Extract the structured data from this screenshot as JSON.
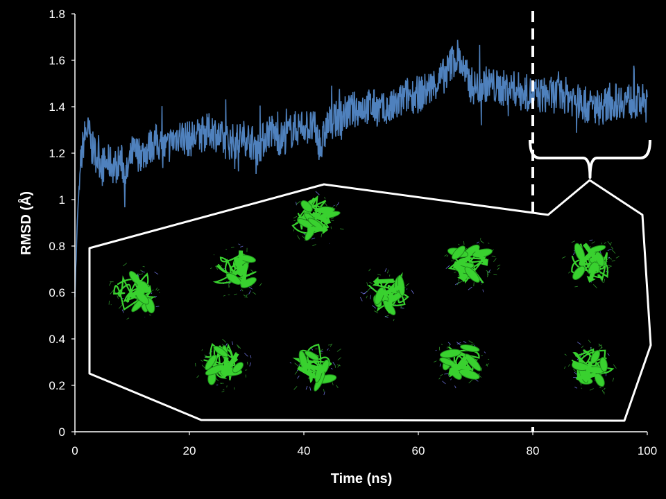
{
  "chart_data": {
    "type": "line",
    "xlabel": "Time (ns)",
    "ylabel": "RMSD (Å)",
    "xlim": [
      0,
      100
    ],
    "ylim": [
      0,
      1.8
    ],
    "x_ticks": [
      "0",
      "20",
      "40",
      "60",
      "80",
      "100"
    ],
    "y_ticks": [
      "0",
      "0.2",
      "0.4",
      "0.6",
      "0.8",
      "1",
      "1.2",
      "1.4",
      "1.6",
      "1.8"
    ],
    "grid": false,
    "background": "#000000",
    "series": [
      {
        "color": "#4f81bd",
        "x": [
          0,
          0.5,
          1,
          1.5,
          2,
          2.5,
          3,
          4,
          5,
          6,
          7,
          8,
          9,
          10,
          12,
          14,
          16,
          18,
          20,
          22,
          24,
          26,
          28,
          30,
          32,
          34,
          36,
          38,
          40,
          42,
          43,
          44,
          46,
          48,
          50,
          52,
          54,
          56,
          58,
          60,
          62,
          64,
          65,
          66,
          67,
          68,
          69,
          70,
          72,
          74,
          76,
          78,
          80,
          82,
          84,
          86,
          88,
          90,
          92,
          94,
          96,
          98,
          100
        ],
        "y": [
          0.6,
          0.95,
          1.15,
          1.25,
          1.3,
          1.28,
          1.22,
          1.18,
          1.15,
          1.16,
          1.14,
          1.17,
          1.1,
          1.2,
          1.2,
          1.25,
          1.22,
          1.28,
          1.26,
          1.28,
          1.3,
          1.25,
          1.25,
          1.27,
          1.22,
          1.3,
          1.26,
          1.3,
          1.32,
          1.3,
          1.22,
          1.32,
          1.35,
          1.38,
          1.4,
          1.4,
          1.38,
          1.4,
          1.45,
          1.45,
          1.48,
          1.52,
          1.55,
          1.6,
          1.62,
          1.55,
          1.5,
          1.48,
          1.5,
          1.48,
          1.48,
          1.47,
          1.45,
          1.45,
          1.45,
          1.45,
          1.42,
          1.4,
          1.4,
          1.42,
          1.43,
          1.42,
          1.42
        ]
      }
    ],
    "annotations": [
      {
        "type": "vline",
        "x": 80,
        "style": "dashed",
        "color": "#ffffff"
      },
      {
        "type": "brace",
        "x_range": [
          80,
          100
        ],
        "color": "#ffffff"
      }
    ]
  },
  "inset": {
    "outline_color": "#ffffff",
    "protein_color": "#39d12f",
    "structures": 10
  }
}
